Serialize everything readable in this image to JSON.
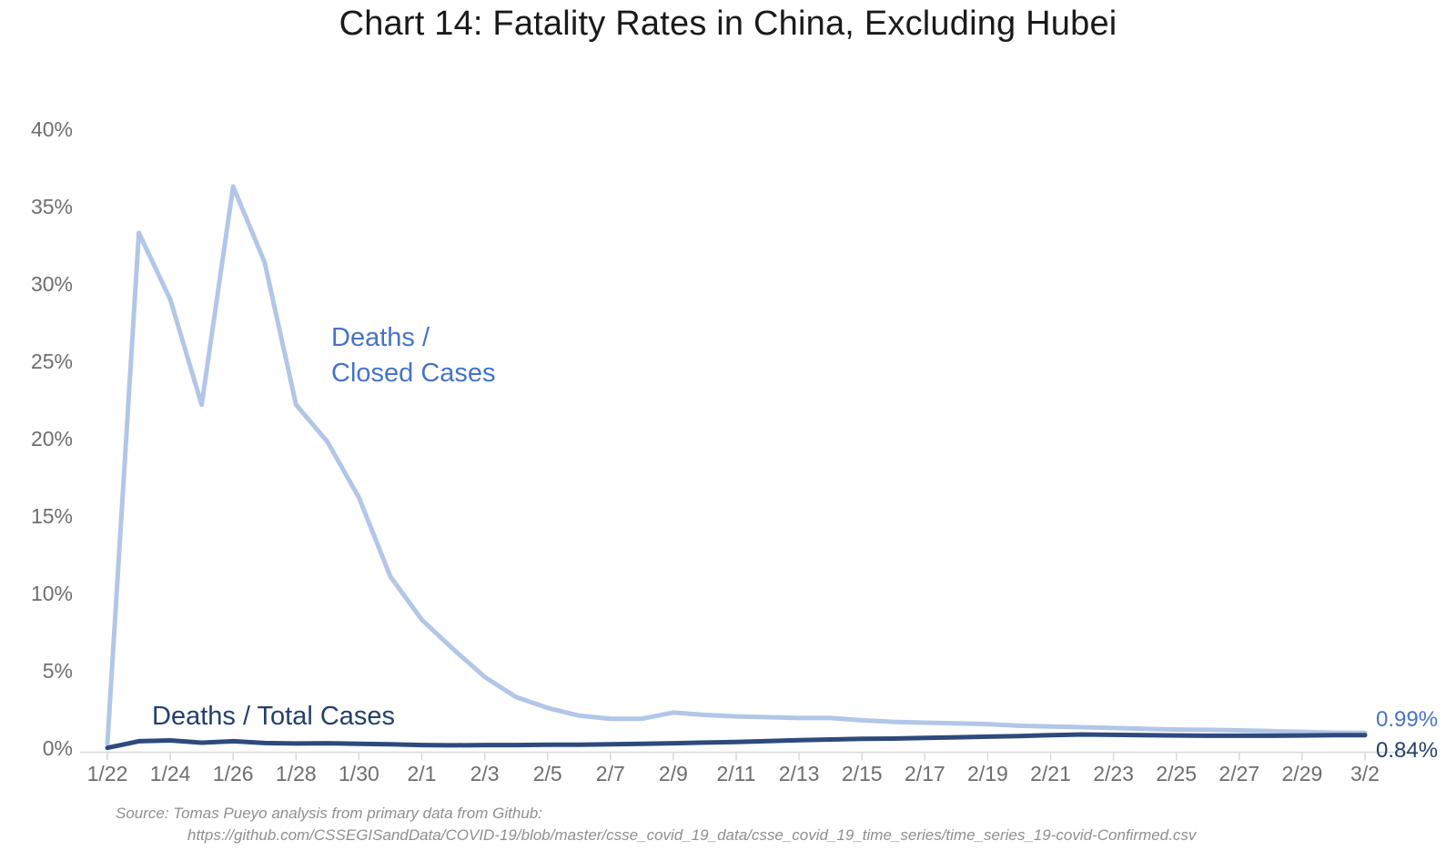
{
  "title": "Chart 14: Fatality Rates in China, Excluding Hubei",
  "annotations": {
    "closed_cases_line1": "Deaths /",
    "closed_cases_line2": "Closed Cases",
    "total_cases_label": "Deaths / Total Cases",
    "end_value_closed": "0.99%",
    "end_value_total": "0.84%"
  },
  "source": {
    "line1": "Source: Tomas Pueyo analysis from primary data from Github:",
    "line2": "https://github.com/CSSEGISandData/COVID-19/blob/master/csse_covid_19_data/csse_covid_19_time_series/time_series_19-covid-Confirmed.csv"
  },
  "colors": {
    "closed_cases_line": "#b2c6e8",
    "total_cases_line": "#2e4a7d",
    "closed_cases_text": "#4673c8",
    "total_cases_text": "#24406d",
    "axis_text": "#6e6e6e",
    "axis_line": "#d9d9d9",
    "source_text": "#8f8f8f",
    "title_text": "#1a1a1a"
  },
  "chart_data": {
    "type": "line",
    "title": "Chart 14: Fatality Rates in China, Excluding Hubei",
    "xlabel": "",
    "ylabel": "",
    "grid": false,
    "legend_position": "inline-annotations",
    "ylim": [
      0,
      40
    ],
    "y_ticks": [
      0,
      5,
      10,
      15,
      20,
      25,
      30,
      35,
      40
    ],
    "y_tick_suffix": "%",
    "x": [
      "1/22",
      "1/23",
      "1/24",
      "1/25",
      "1/26",
      "1/27",
      "1/28",
      "1/29",
      "1/30",
      "1/31",
      "2/1",
      "2/2",
      "2/3",
      "2/4",
      "2/5",
      "2/6",
      "2/7",
      "2/8",
      "2/9",
      "2/10",
      "2/11",
      "2/12",
      "2/13",
      "2/14",
      "2/15",
      "2/16",
      "2/17",
      "2/18",
      "2/19",
      "2/20",
      "2/21",
      "2/22",
      "2/23",
      "2/24",
      "2/25",
      "2/26",
      "2/27",
      "2/28",
      "2/29",
      "3/1",
      "3/2"
    ],
    "x_tick_labels": [
      "1/22",
      "1/24",
      "1/26",
      "1/28",
      "1/30",
      "2/1",
      "2/3",
      "2/5",
      "2/7",
      "2/9",
      "2/11",
      "2/13",
      "2/15",
      "2/17",
      "2/19",
      "2/21",
      "2/23",
      "2/25",
      "2/27",
      "2/29",
      "3/2"
    ],
    "series": [
      {
        "name": "Deaths / Closed Cases",
        "color": "#b2c6e8",
        "end_label": "0.99%",
        "values": [
          0.3,
          33.3,
          29.0,
          22.2,
          36.3,
          31.4,
          22.2,
          19.8,
          16.2,
          11.1,
          8.3,
          6.4,
          4.6,
          3.3,
          2.6,
          2.1,
          1.9,
          1.9,
          2.3,
          2.15,
          2.05,
          2.0,
          1.95,
          1.95,
          1.8,
          1.7,
          1.65,
          1.6,
          1.55,
          1.45,
          1.4,
          1.35,
          1.3,
          1.25,
          1.2,
          1.18,
          1.15,
          1.1,
          1.05,
          1.0,
          0.99
        ]
      },
      {
        "name": "Deaths / Total Cases",
        "color": "#2e4a7d",
        "end_label": "0.84%",
        "values": [
          0.02,
          0.45,
          0.5,
          0.35,
          0.45,
          0.33,
          0.3,
          0.32,
          0.28,
          0.25,
          0.2,
          0.18,
          0.2,
          0.2,
          0.22,
          0.22,
          0.25,
          0.28,
          0.32,
          0.36,
          0.4,
          0.46,
          0.52,
          0.56,
          0.6,
          0.62,
          0.66,
          0.7,
          0.74,
          0.78,
          0.84,
          0.88,
          0.86,
          0.84,
          0.82,
          0.8,
          0.8,
          0.8,
          0.82,
          0.84,
          0.84
        ]
      }
    ]
  }
}
